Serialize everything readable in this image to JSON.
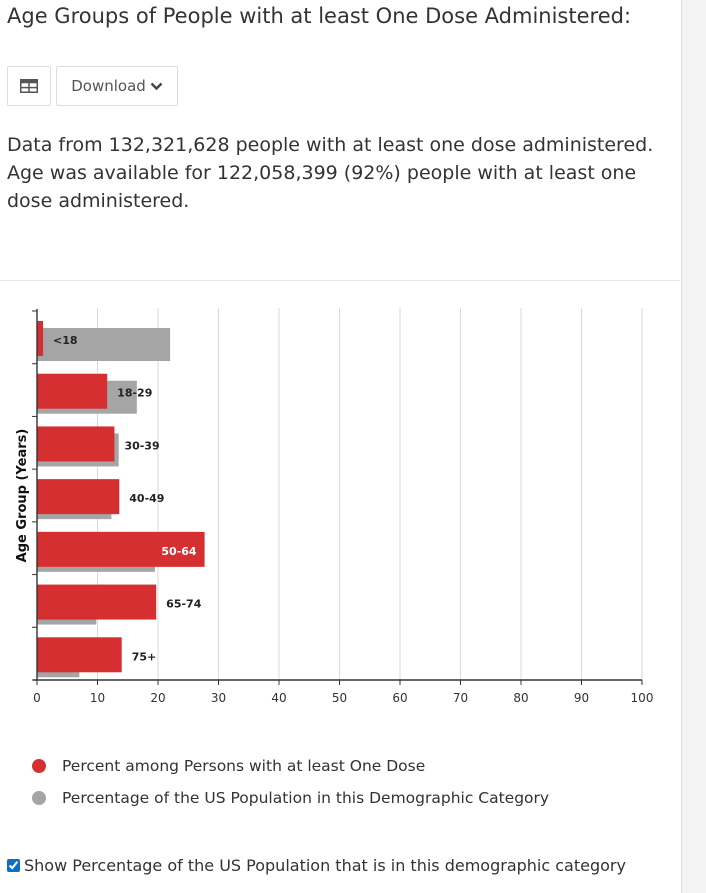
{
  "page": {
    "title": "Age Groups of People with at least One Dose Administered:",
    "download_label": "Download",
    "table_icon": "table-icon",
    "summary_lines": [
      "Data from 132,321,628 people with at least one dose administered.",
      "Age was available for 122,058,399 (92%) people with at least one",
      "dose administered."
    ],
    "toggle_label": "Show Percentage of the US Population that is in this demographic category",
    "toggle_checked": true
  },
  "colors": {
    "primary": "#d62f31",
    "secondary": "#a5a5a5",
    "grid": "#d9d9d9",
    "checkbox": "#0b6fc7"
  },
  "chart_data": {
    "type": "bar",
    "orientation": "horizontal",
    "ylabel": "Age Group (Years)",
    "xlim": [
      0,
      100
    ],
    "xticks": [
      0,
      10,
      20,
      30,
      40,
      50,
      60,
      70,
      80,
      90,
      100
    ],
    "grid": true,
    "legend_position": "bottom",
    "categories": [
      "<18",
      "18-29",
      "30-39",
      "40-49",
      "50-64",
      "65-74",
      "75+"
    ],
    "series": [
      {
        "name": "Percent among Persons with at least One Dose",
        "color": "#d62f31",
        "values": [
          1.0,
          11.6,
          12.8,
          13.6,
          27.7,
          19.7,
          14.0
        ]
      },
      {
        "name": "Percentage of the US Population in this Demographic Category",
        "color": "#a5a5a5",
        "values": [
          22.0,
          16.5,
          13.5,
          12.3,
          19.5,
          9.8,
          7.0
        ]
      }
    ]
  }
}
